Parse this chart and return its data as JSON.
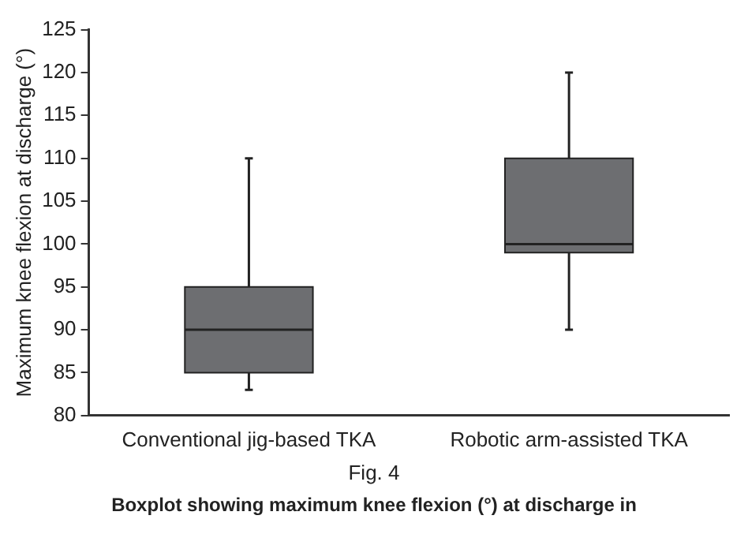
{
  "chart_data": {
    "type": "box",
    "ylabel": "Maximum knee flexion at discharge (°)",
    "categories": [
      "Conventional jig-based TKA",
      "Robotic arm-assisted TKA"
    ],
    "boxes": [
      {
        "low": 83,
        "q1": 85,
        "median": 90,
        "q3": 95,
        "high": 110
      },
      {
        "low": 90,
        "q1": 99,
        "median": 100,
        "q3": 110,
        "high": 120
      }
    ],
    "color": "#6d6e71",
    "ylim": [
      80,
      125
    ],
    "yticks": [
      80,
      85,
      90,
      95,
      100,
      105,
      110,
      115,
      120,
      125
    ],
    "annotations": [
      "Fig. 4",
      "Boxplot showing maximum knee flexion (°) at discharge in"
    ]
  }
}
